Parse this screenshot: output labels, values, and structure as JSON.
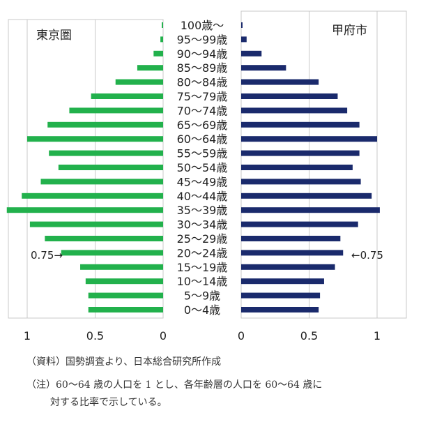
{
  "chart_data": [
    {
      "type": "bar",
      "orientation": "horizontal",
      "direction": "leftward",
      "title": "東京圏",
      "categories": [
        "100歳〜",
        "95〜99歳",
        "90〜94歳",
        "85〜89歳",
        "80〜84歳",
        "75〜79歳",
        "70〜74歳",
        "65〜69歳",
        "60〜64歳",
        "55〜59歳",
        "50〜54歳",
        "45〜49歳",
        "40〜44歳",
        "35〜39歳",
        "30〜34歳",
        "25〜29歳",
        "20〜24歳",
        "15〜19歳",
        "10〜14歳",
        "5〜9歳",
        "0〜4歳"
      ],
      "values": [
        0.01,
        0.02,
        0.07,
        0.19,
        0.35,
        0.53,
        0.69,
        0.85,
        1.0,
        0.84,
        0.77,
        0.9,
        1.04,
        1.15,
        0.98,
        0.87,
        0.75,
        0.61,
        0.57,
        0.55,
        0.55
      ],
      "xlim": [
        0,
        1.2
      ],
      "xticks": [
        "1",
        "0.5",
        "0"
      ],
      "color": "#22b14c",
      "annotation": "0.75→"
    },
    {
      "type": "bar",
      "orientation": "horizontal",
      "direction": "rightward",
      "title": "甲府市",
      "categories": [
        "100歳〜",
        "95〜99歳",
        "90〜94歳",
        "85〜89歳",
        "80〜84歳",
        "75〜79歳",
        "70〜74歳",
        "65〜69歳",
        "60〜64歳",
        "55〜59歳",
        "50〜54歳",
        "45〜49歳",
        "40〜44歳",
        "35〜39歳",
        "30〜34歳",
        "25〜29歳",
        "20〜24歳",
        "15〜19歳",
        "10〜14歳",
        "5〜9歳",
        "0〜4歳"
      ],
      "values": [
        0.01,
        0.04,
        0.15,
        0.33,
        0.57,
        0.71,
        0.78,
        0.87,
        1.0,
        0.87,
        0.82,
        0.88,
        0.96,
        1.02,
        0.86,
        0.73,
        0.75,
        0.69,
        0.61,
        0.58,
        0.57
      ],
      "xlim": [
        0,
        1.2
      ],
      "xticks": [
        "0",
        "0.5",
        "1"
      ],
      "color": "#1a2a6c",
      "annotation": "←0.75"
    }
  ],
  "notes": {
    "source": "（資料）国勢調査より、日本総合研究所作成",
    "note_line1": "（注）60〜64 歳の人口を 1 とし、各年齢層の人口を 60〜64 歳に",
    "note_line2": "対する比率で示している。"
  }
}
